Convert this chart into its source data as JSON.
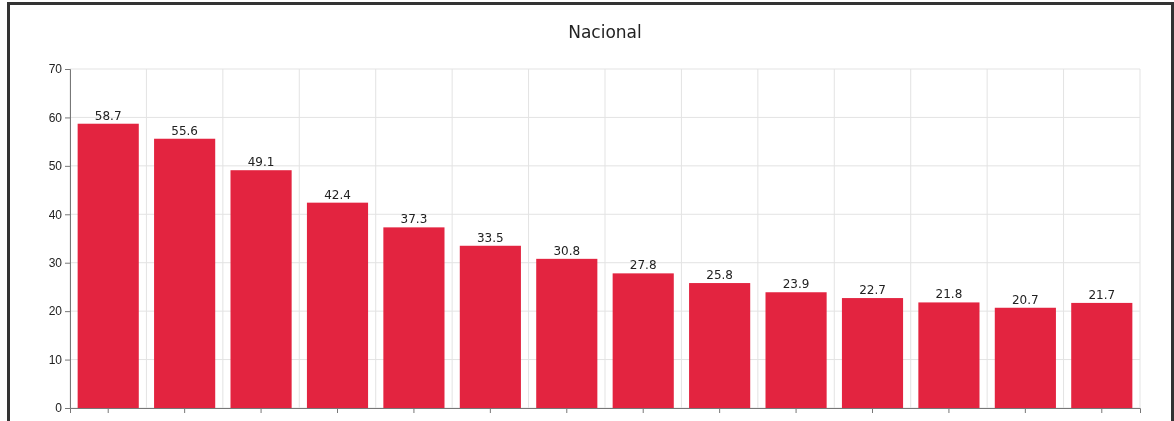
{
  "chart_data": {
    "type": "bar",
    "title": "Nacional",
    "categories": [
      null,
      null,
      null,
      null,
      null,
      null,
      null,
      null,
      null,
      null,
      null,
      null,
      null,
      null
    ],
    "values": [
      58.7,
      55.6,
      49.1,
      42.4,
      37.3,
      33.5,
      30.8,
      27.8,
      25.8,
      23.9,
      22.7,
      21.8,
      20.7,
      21.7
    ],
    "color": "#e32440",
    "data_labels": true,
    "grid": true,
    "ylim": [
      0,
      70
    ],
    "yticks": [
      0,
      10,
      20,
      30,
      40,
      50,
      60,
      70
    ]
  }
}
